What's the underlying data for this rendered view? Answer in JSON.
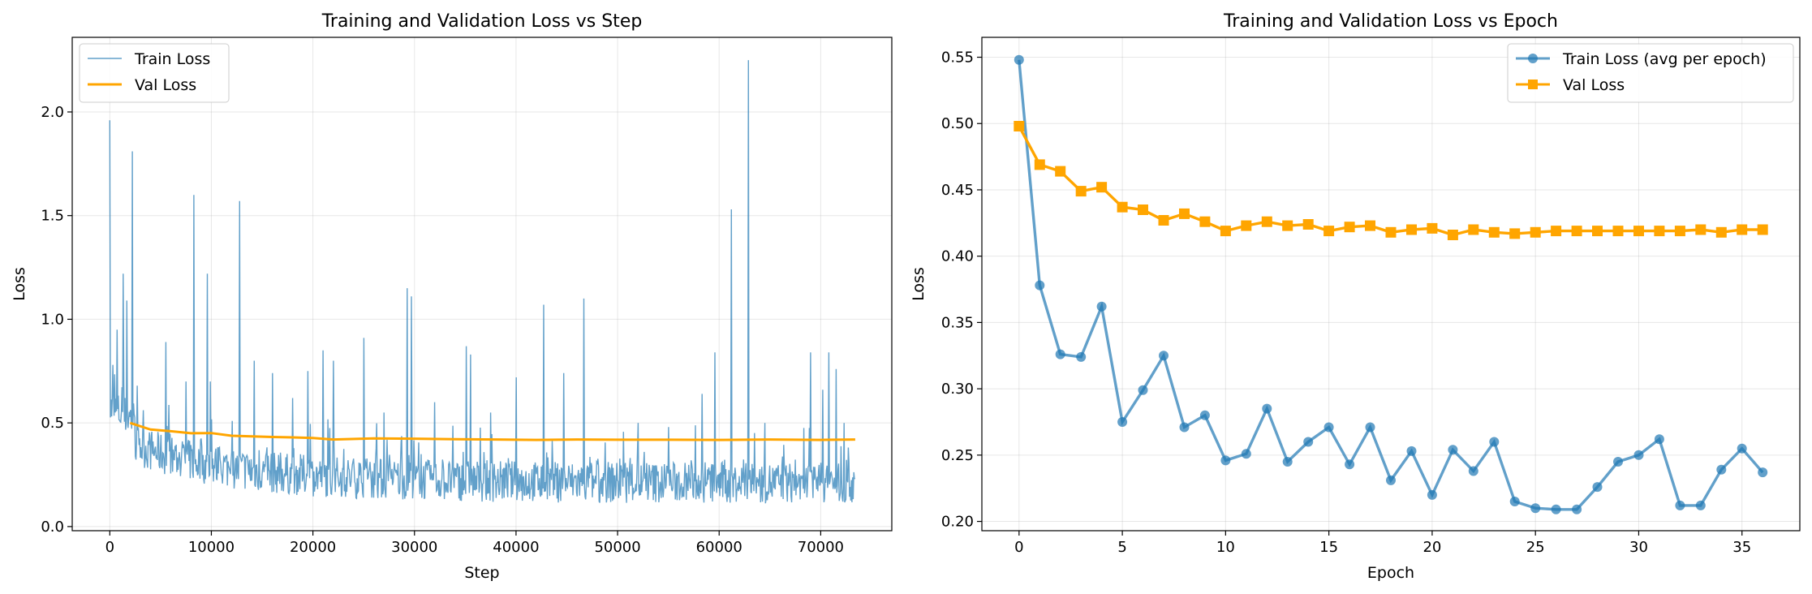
{
  "colors": {
    "train": "#1f77b4",
    "val": "#ffa500"
  },
  "chart_data": [
    {
      "type": "line",
      "title": "Training and Validation Loss vs Step",
      "xlabel": "Step",
      "ylabel": "Loss",
      "xlim": [
        -3700,
        77000
      ],
      "ylim": [
        -0.02,
        2.36
      ],
      "xticks": [
        0,
        10000,
        20000,
        30000,
        40000,
        50000,
        60000,
        70000
      ],
      "yticks": [
        0.0,
        0.5,
        1.0,
        1.5,
        2.0
      ],
      "xtick_labels": [
        "0",
        "10000",
        "20000",
        "30000",
        "40000",
        "50000",
        "60000",
        "70000"
      ],
      "ytick_labels": [
        "0.0",
        "0.5",
        "1.0",
        "1.5",
        "2.0"
      ],
      "grid": true,
      "legend_position": "upper-left",
      "series": [
        {
          "name": "Train Loss",
          "color": "#1f77b4",
          "spikes": [
            [
              0,
              1.96
            ],
            [
              300,
              0.78
            ],
            [
              700,
              0.95
            ],
            [
              1300,
              1.22
            ],
            [
              1700,
              1.09
            ],
            [
              2200,
              1.81
            ],
            [
              2700,
              0.68
            ],
            [
              5500,
              0.89
            ],
            [
              7500,
              0.7
            ],
            [
              8300,
              1.6
            ],
            [
              9600,
              1.22
            ],
            [
              9900,
              0.7
            ],
            [
              12800,
              1.57
            ],
            [
              14200,
              0.8
            ],
            [
              16000,
              0.74
            ],
            [
              18000,
              0.62
            ],
            [
              19500,
              0.75
            ],
            [
              21000,
              0.85
            ],
            [
              22000,
              0.8
            ],
            [
              25000,
              0.91
            ],
            [
              27000,
              0.55
            ],
            [
              29300,
              1.15
            ],
            [
              29700,
              1.11
            ],
            [
              32000,
              0.6
            ],
            [
              35100,
              0.87
            ],
            [
              35500,
              0.83
            ],
            [
              37500,
              0.55
            ],
            [
              40000,
              0.72
            ],
            [
              42700,
              1.07
            ],
            [
              44700,
              0.74
            ],
            [
              46700,
              1.1
            ],
            [
              52000,
              0.5
            ],
            [
              55000,
              0.48
            ],
            [
              58300,
              0.64
            ],
            [
              59600,
              0.84
            ],
            [
              61200,
              1.53
            ],
            [
              62900,
              2.25
            ],
            [
              64500,
              0.5
            ],
            [
              69000,
              0.84
            ],
            [
              70200,
              0.66
            ],
            [
              70800,
              0.84
            ],
            [
              71500,
              0.76
            ],
            [
              72300,
              0.5
            ]
          ]
        },
        {
          "name": "Val Loss",
          "color": "#ffa500",
          "x": [
            2000,
            4000,
            6000,
            8000,
            10000,
            12000,
            14000,
            16000,
            18000,
            20000,
            22000,
            26000,
            30000,
            34000,
            38000,
            42000,
            46000,
            50000,
            55000,
            60000,
            65000,
            70000,
            73400
          ],
          "y": [
            0.5,
            0.468,
            0.46,
            0.45,
            0.451,
            0.438,
            0.435,
            0.432,
            0.43,
            0.427,
            0.42,
            0.425,
            0.424,
            0.421,
            0.42,
            0.418,
            0.42,
            0.419,
            0.419,
            0.418,
            0.42,
            0.418,
            0.42
          ]
        }
      ]
    },
    {
      "type": "line",
      "title": "Training and Validation Loss vs Epoch",
      "xlabel": "Epoch",
      "ylabel": "Loss",
      "xlim": [
        -1.8,
        37.8
      ],
      "ylim": [
        0.193,
        0.565
      ],
      "xticks": [
        0,
        5,
        10,
        15,
        20,
        25,
        30,
        35
      ],
      "yticks": [
        0.2,
        0.25,
        0.3,
        0.35,
        0.4,
        0.45,
        0.5,
        0.55
      ],
      "xtick_labels": [
        "0",
        "5",
        "10",
        "15",
        "20",
        "25",
        "30",
        "35"
      ],
      "ytick_labels": [
        "0.20",
        "0.25",
        "0.30",
        "0.35",
        "0.40",
        "0.45",
        "0.50",
        "0.55"
      ],
      "grid": true,
      "legend_position": "upper-right",
      "series": [
        {
          "name": "Train Loss (avg per epoch)",
          "color": "#1f77b4",
          "marker": "circle",
          "x": [
            0,
            1,
            2,
            3,
            4,
            5,
            6,
            7,
            8,
            9,
            10,
            11,
            12,
            13,
            14,
            15,
            16,
            17,
            18,
            19,
            20,
            21,
            22,
            23,
            24,
            25,
            26,
            27,
            28,
            29,
            30,
            31,
            32,
            33,
            34,
            35,
            36
          ],
          "y": [
            0.548,
            0.378,
            0.326,
            0.324,
            0.362,
            0.275,
            0.299,
            0.325,
            0.271,
            0.28,
            0.246,
            0.251,
            0.285,
            0.245,
            0.26,
            0.271,
            0.243,
            0.271,
            0.231,
            0.253,
            0.22,
            0.254,
            0.238,
            0.26,
            0.215,
            0.21,
            0.209,
            0.209,
            0.226,
            0.245,
            0.25,
            0.262,
            0.212,
            0.212,
            0.239,
            0.255,
            0.237
          ]
        },
        {
          "name": "Val Loss",
          "color": "#ffa500",
          "marker": "square",
          "x": [
            0,
            1,
            2,
            3,
            4,
            5,
            6,
            7,
            8,
            9,
            10,
            11,
            12,
            13,
            14,
            15,
            16,
            17,
            18,
            19,
            20,
            21,
            22,
            23,
            24,
            25,
            26,
            27,
            28,
            29,
            30,
            31,
            32,
            33,
            34,
            35,
            36
          ],
          "y": [
            0.498,
            0.469,
            0.464,
            0.449,
            0.452,
            0.437,
            0.435,
            0.427,
            0.432,
            0.426,
            0.419,
            0.423,
            0.426,
            0.423,
            0.424,
            0.419,
            0.422,
            0.423,
            0.418,
            0.42,
            0.421,
            0.416,
            0.42,
            0.418,
            0.417,
            0.418,
            0.419,
            0.419,
            0.419,
            0.419,
            0.419,
            0.419,
            0.419,
            0.42,
            0.418,
            0.42,
            0.42
          ]
        }
      ]
    }
  ]
}
